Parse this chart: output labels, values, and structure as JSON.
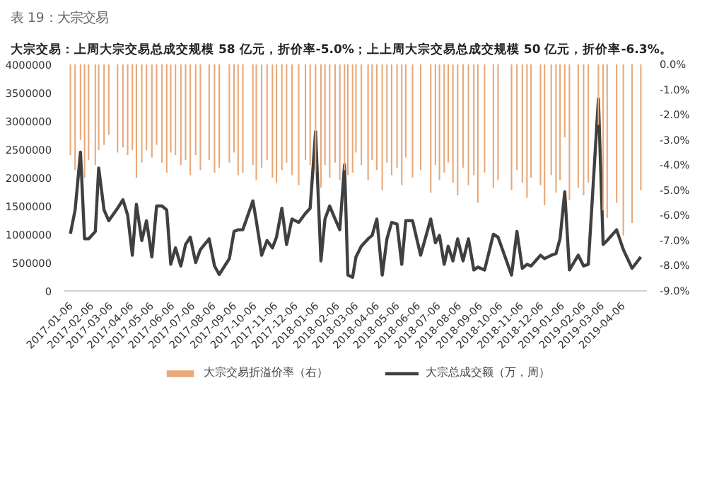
{
  "chart_data": {
    "type": "bar",
    "title": "表 19：大宗交易",
    "subtitle": "大宗交易：上周大宗交易总成交规模 58 亿元，折价率-5.0%；上上周大宗交易总成交规模 50 亿元，折价率-6.3%。",
    "x": [
      "2017-01-06",
      "2017-01-13",
      "2017-01-21",
      "2017-01-27",
      "2017-02-02",
      "2017-02-12",
      "2017-02-17",
      "2017-02-25",
      "2017-03-04",
      "2017-03-17",
      "2017-03-25",
      "2017-04-01",
      "2017-04-08",
      "2017-04-14",
      "2017-04-22",
      "2017-04-29",
      "2017-05-07",
      "2017-05-14",
      "2017-05-22",
      "2017-05-29",
      "2017-06-04",
      "2017-06-11",
      "2017-06-19",
      "2017-06-26",
      "2017-07-03",
      "2017-07-11",
      "2017-07-18",
      "2017-07-31",
      "2017-08-08",
      "2017-08-15",
      "2017-08-30",
      "2017-09-06",
      "2017-09-12",
      "2017-09-19",
      "2017-10-04",
      "2017-10-09",
      "2017-10-17",
      "2017-10-25",
      "2017-11-02",
      "2017-11-08",
      "2017-11-16",
      "2017-11-23",
      "2017-12-01",
      "2017-12-11",
      "2017-12-21",
      "2017-12-28",
      "2018-01-05",
      "2018-01-13",
      "2018-01-19",
      "2018-01-26",
      "2018-02-03",
      "2018-02-10",
      "2018-02-17",
      "2018-02-22",
      "2018-03-01",
      "2018-03-06",
      "2018-03-14",
      "2018-03-24",
      "2018-03-30",
      "2018-04-06",
      "2018-04-14",
      "2018-04-21",
      "2018-04-28",
      "2018-05-06",
      "2018-05-13",
      "2018-05-19",
      "2018-05-29",
      "2018-06-10",
      "2018-06-25",
      "2018-07-02",
      "2018-07-08",
      "2018-07-15",
      "2018-07-21",
      "2018-07-28",
      "2018-08-04",
      "2018-08-12",
      "2018-08-20",
      "2018-08-28",
      "2018-09-03",
      "2018-09-13",
      "2018-09-26",
      "2018-10-03",
      "2018-10-23",
      "2018-10-31",
      "2018-11-08",
      "2018-11-15",
      "2018-11-21",
      "2018-12-05",
      "2018-12-11",
      "2018-12-21",
      "2018-12-28",
      "2019-01-03",
      "2019-01-10",
      "2019-01-17",
      "2019-01-30",
      "2019-02-07",
      "2019-02-14",
      "2019-03-01",
      "2019-03-08",
      "2019-03-14",
      "2019-03-28",
      "2019-04-07",
      "2019-04-20",
      "2019-05-03"
    ],
    "series": [
      {
        "name": "大宗交易折溢价率（右）",
        "axis": "y2",
        "color": "#e9a878",
        "values": [
          -3.6,
          -4.2,
          -3.0,
          -4.5,
          -3.8,
          -4.0,
          -3.4,
          -3.2,
          -2.8,
          -3.5,
          -3.3,
          -3.6,
          -3.4,
          -4.5,
          -3.9,
          -3.4,
          -3.7,
          -3.2,
          -3.9,
          -4.3,
          -3.5,
          -3.6,
          -4.0,
          -3.8,
          -4.4,
          -3.6,
          -4.2,
          -3.8,
          -4.3,
          -4.1,
          -3.9,
          -3.5,
          -4.4,
          -4.3,
          -4.0,
          -4.6,
          -4.1,
          -3.8,
          -4.5,
          -4.7,
          -4.2,
          -3.9,
          -4.4,
          -4.8,
          -3.8,
          -4.0,
          -4.3,
          -4.9,
          -4.0,
          -4.5,
          -3.9,
          -4.6,
          -4.2,
          -4.4,
          -4.3,
          -3.5,
          -4.0,
          -4.6,
          -3.8,
          -4.2,
          -5.0,
          -3.9,
          -4.4,
          -4.1,
          -4.8,
          -3.7,
          -4.5,
          -4.2,
          -5.1,
          -4.0,
          -4.6,
          -4.3,
          -3.9,
          -4.7,
          -5.2,
          -4.1,
          -4.8,
          -4.4,
          -5.5,
          -4.3,
          -4.9,
          -4.6,
          -5.0,
          -4.2,
          -4.7,
          -5.3,
          -4.5,
          -4.8,
          -5.6,
          -4.4,
          -5.1,
          -4.6,
          -2.9,
          -5.4,
          -4.9,
          -5.2,
          -4.7,
          -2.4,
          -5.8,
          -6.1,
          -5.5,
          -6.8,
          -6.3,
          -5.0
        ]
      },
      {
        "name": "大宗总成交额（万，周）",
        "type": "line",
        "color": "#404040",
        "values": [
          1010000,
          1430000,
          2450000,
          920000,
          920000,
          1050000,
          2170000,
          1430000,
          1240000,
          1460000,
          1610000,
          1340000,
          630000,
          1530000,
          890000,
          1240000,
          600000,
          1500000,
          1500000,
          1430000,
          470000,
          760000,
          440000,
          820000,
          950000,
          500000,
          730000,
          920000,
          440000,
          290000,
          570000,
          1050000,
          1080000,
          1080000,
          1590000,
          1240000,
          630000,
          890000,
          760000,
          950000,
          1460000,
          820000,
          1270000,
          1210000,
          1370000,
          1460000,
          2810000,
          530000,
          1270000,
          1500000,
          1270000,
          1080000,
          2230000,
          280000,
          240000,
          600000,
          790000,
          920000,
          980000,
          1270000,
          280000,
          920000,
          1210000,
          1180000,
          470000,
          1240000,
          1240000,
          630000,
          1270000,
          850000,
          980000,
          470000,
          790000,
          530000,
          920000,
          530000,
          920000,
          370000,
          420000,
          370000,
          1000000,
          950000,
          280000,
          1050000,
          400000,
          470000,
          440000,
          630000,
          570000,
          630000,
          660000,
          920000,
          1750000,
          370000,
          630000,
          440000,
          470000,
          3390000,
          820000,
          890000,
          1080000,
          730000,
          400000,
          600000
        ]
      }
    ],
    "xlim": [
      "2016-12-28",
      "2019-05-12"
    ],
    "xticks": [
      "2017-01-06",
      "2017-02-06",
      "2017-03-06",
      "2017-04-06",
      "2017-05-06",
      "2017-06-06",
      "2017-07-06",
      "2017-08-06",
      "2017-09-06",
      "2017-10-06",
      "2017-11-06",
      "2017-12-06",
      "2018-01-06",
      "2018-02-06",
      "2018-03-06",
      "2018-04-06",
      "2018-05-06",
      "2018-06-06",
      "2018-07-06",
      "2018-08-06",
      "2018-09-06",
      "2018-10-06",
      "2018-11-06",
      "2018-12-06",
      "2019-01-06",
      "2019-02-06",
      "2019-03-06",
      "2019-04-06"
    ],
    "ylim": [
      0,
      4000000
    ],
    "yticks": [
      0,
      500000,
      1000000,
      1500000,
      2000000,
      2500000,
      3000000,
      3500000,
      4000000
    ],
    "y2lim": [
      -9,
      0
    ],
    "y2ticks": [
      {
        "value": -9,
        "label": "-9.0%"
      },
      {
        "value": -8,
        "label": "-8.0%"
      },
      {
        "value": -7,
        "label": "-7.0%"
      },
      {
        "value": -6,
        "label": "-6.0%"
      },
      {
        "value": -5,
        "label": "-5.0%"
      },
      {
        "value": -4,
        "label": "-4.0%"
      },
      {
        "value": -3,
        "label": "-3.0%"
      },
      {
        "value": -2,
        "label": "-2.0%"
      },
      {
        "value": -1,
        "label": "-1.0%"
      },
      {
        "value": 0,
        "label": "0.0%"
      }
    ],
    "legend": "bottom",
    "grid": false,
    "marker": "none",
    "line_style": "solid"
  }
}
